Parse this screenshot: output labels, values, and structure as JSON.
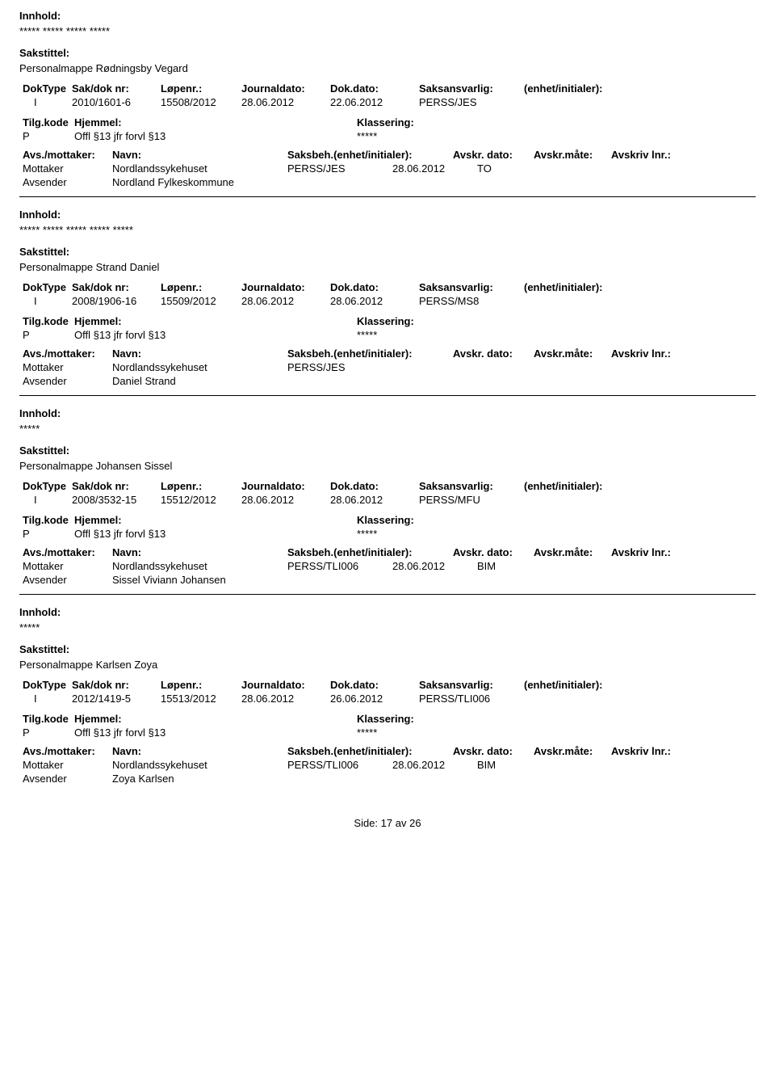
{
  "labels": {
    "innhold": "Innhold:",
    "sakstittel": "Sakstittel:",
    "doktype": "DokType",
    "saknr": "Sak/dok nr:",
    "lopenr": "Løpenr.:",
    "journaldato": "Journaldato:",
    "dokdato": "Dok.dato:",
    "saksansvarlig": "Saksansvarlig:",
    "enhet": "(enhet/initialer):",
    "tilgkode": "Tilg.kode",
    "hjemmel": "Hjemmel:",
    "klassering": "Klassering:",
    "avsmottaker": "Avs./mottaker:",
    "navn": "Navn:",
    "saksbeh_h": "Saksbeh.(enhet/initialer):",
    "avskr_dato": "Avskr. dato:",
    "avskr_mate": "Avskr.måte:",
    "avskriv_lnr": "Avskriv lnr.:",
    "mottaker": "Mottaker",
    "avsender": "Avsender"
  },
  "records": [
    {
      "content": "***** ***** ***** *****",
      "title": "Personalmappe Rødningsby Vegard",
      "doktype": "I",
      "saknr": "2010/1601-6",
      "lopenr": "15508/2012",
      "jdato": "28.06.2012",
      "dokdato": "22.06.2012",
      "saksansv": "PERSS/JES",
      "tilgkode": "P",
      "hjemmel": "Offl §13 jfr forvl §13",
      "klass": "*****",
      "mottaker_name": "Nordlandssykehuset",
      "saksbeh": "PERSS/JES",
      "avskr_dato": "28.06.2012",
      "avskr_mate": "TO",
      "avsender_name": "Nordland Fylkeskommune"
    },
    {
      "content": "***** ***** ***** ***** *****",
      "title": "Personalmappe Strand Daniel",
      "doktype": "I",
      "saknr": "2008/1906-16",
      "lopenr": "15509/2012",
      "jdato": "28.06.2012",
      "dokdato": "28.06.2012",
      "saksansv": "PERSS/MS8",
      "tilgkode": "P",
      "hjemmel": "Offl §13 jfr forvl §13",
      "klass": "*****",
      "mottaker_name": "Nordlandssykehuset",
      "saksbeh": "PERSS/JES",
      "avskr_dato": "",
      "avskr_mate": "",
      "avsender_name": "Daniel Strand"
    },
    {
      "content": "*****",
      "title": "Personalmappe Johansen Sissel",
      "doktype": "I",
      "saknr": "2008/3532-15",
      "lopenr": "15512/2012",
      "jdato": "28.06.2012",
      "dokdato": "28.06.2012",
      "saksansv": "PERSS/MFU",
      "tilgkode": "P",
      "hjemmel": "Offl §13 jfr forvl §13",
      "klass": "*****",
      "mottaker_name": "Nordlandssykehuset",
      "saksbeh": "PERSS/TLI006",
      "avskr_dato": "28.06.2012",
      "avskr_mate": "BIM",
      "avsender_name": "Sissel Viviann Johansen"
    },
    {
      "content": "*****",
      "title": "Personalmappe Karlsen Zoya",
      "doktype": "I",
      "saknr": "2012/1419-5",
      "lopenr": "15513/2012",
      "jdato": "28.06.2012",
      "dokdato": "26.06.2012",
      "saksansv": "PERSS/TLI006",
      "tilgkode": "P",
      "hjemmel": "Offl §13 jfr forvl §13",
      "klass": "*****",
      "mottaker_name": "Nordlandssykehuset",
      "saksbeh": "PERSS/TLI006",
      "avskr_dato": "28.06.2012",
      "avskr_mate": "BIM",
      "avsender_name": "Zoya Karlsen"
    }
  ],
  "footer": {
    "side": "Side:",
    "page": "17",
    "av": "av",
    "total": "26"
  }
}
